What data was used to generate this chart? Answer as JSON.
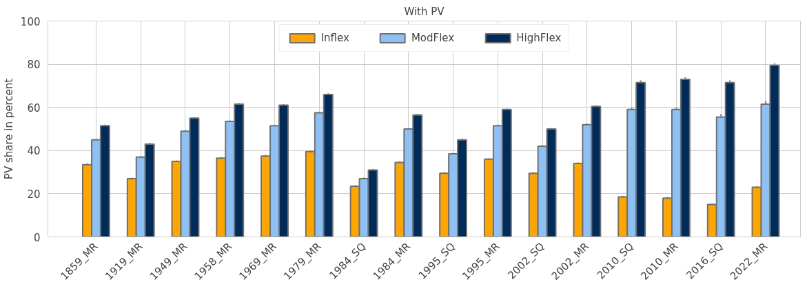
{
  "chart_data": {
    "type": "bar",
    "title": "With PV",
    "ylabel": "PV share in percent",
    "categories": [
      "1859_MR",
      "1919_MR",
      "1949_MR",
      "1958_MR",
      "1969_MR",
      "1979_MR",
      "1984_SQ",
      "1984_MR",
      "1995_SQ",
      "1995_MR",
      "2002_SQ",
      "2002_MR",
      "2010_SQ",
      "2010_MR",
      "2016_SQ",
      "2022_MR"
    ],
    "series": [
      {
        "name": "Inflex",
        "color": "#ffa500",
        "values": [
          33.5,
          27,
          35,
          36.5,
          37.5,
          39.5,
          23.5,
          34.5,
          29.5,
          36,
          29.5,
          34,
          18.5,
          18,
          15,
          23
        ],
        "errors": [
          0.5,
          0.5,
          0.5,
          0.5,
          0.5,
          0.5,
          0.5,
          0.5,
          0.5,
          0.5,
          0.5,
          0.5,
          0.5,
          0.5,
          0.5,
          0.5
        ]
      },
      {
        "name": "ModFlex",
        "color": "#8dc0f5",
        "values": [
          45,
          37,
          49,
          53.5,
          51.5,
          57.5,
          27,
          50,
          38.5,
          51.5,
          42,
          52,
          59,
          59,
          55.5,
          61.5
        ],
        "errors": [
          0.5,
          0.5,
          0.5,
          0.5,
          0.5,
          0.5,
          0.5,
          0.5,
          0.5,
          0.5,
          0.5,
          0.5,
          1,
          1,
          1.5,
          1.5
        ]
      },
      {
        "name": "HighFlex",
        "color": "#002c5c",
        "values": [
          51.5,
          43,
          55,
          61.5,
          61,
          66,
          31,
          56.5,
          45,
          59,
          50,
          60.5,
          71.5,
          73,
          71.5,
          79.5
        ],
        "errors": [
          0.5,
          0.5,
          0.5,
          0.5,
          0.5,
          0.5,
          0.5,
          0.5,
          0.5,
          0.5,
          0.5,
          0.5,
          1,
          1,
          1,
          1
        ]
      }
    ],
    "ylim": [
      0,
      100
    ],
    "yticks": [
      0,
      20,
      40,
      60,
      80,
      100
    ],
    "grid": true,
    "legend": "top"
  }
}
